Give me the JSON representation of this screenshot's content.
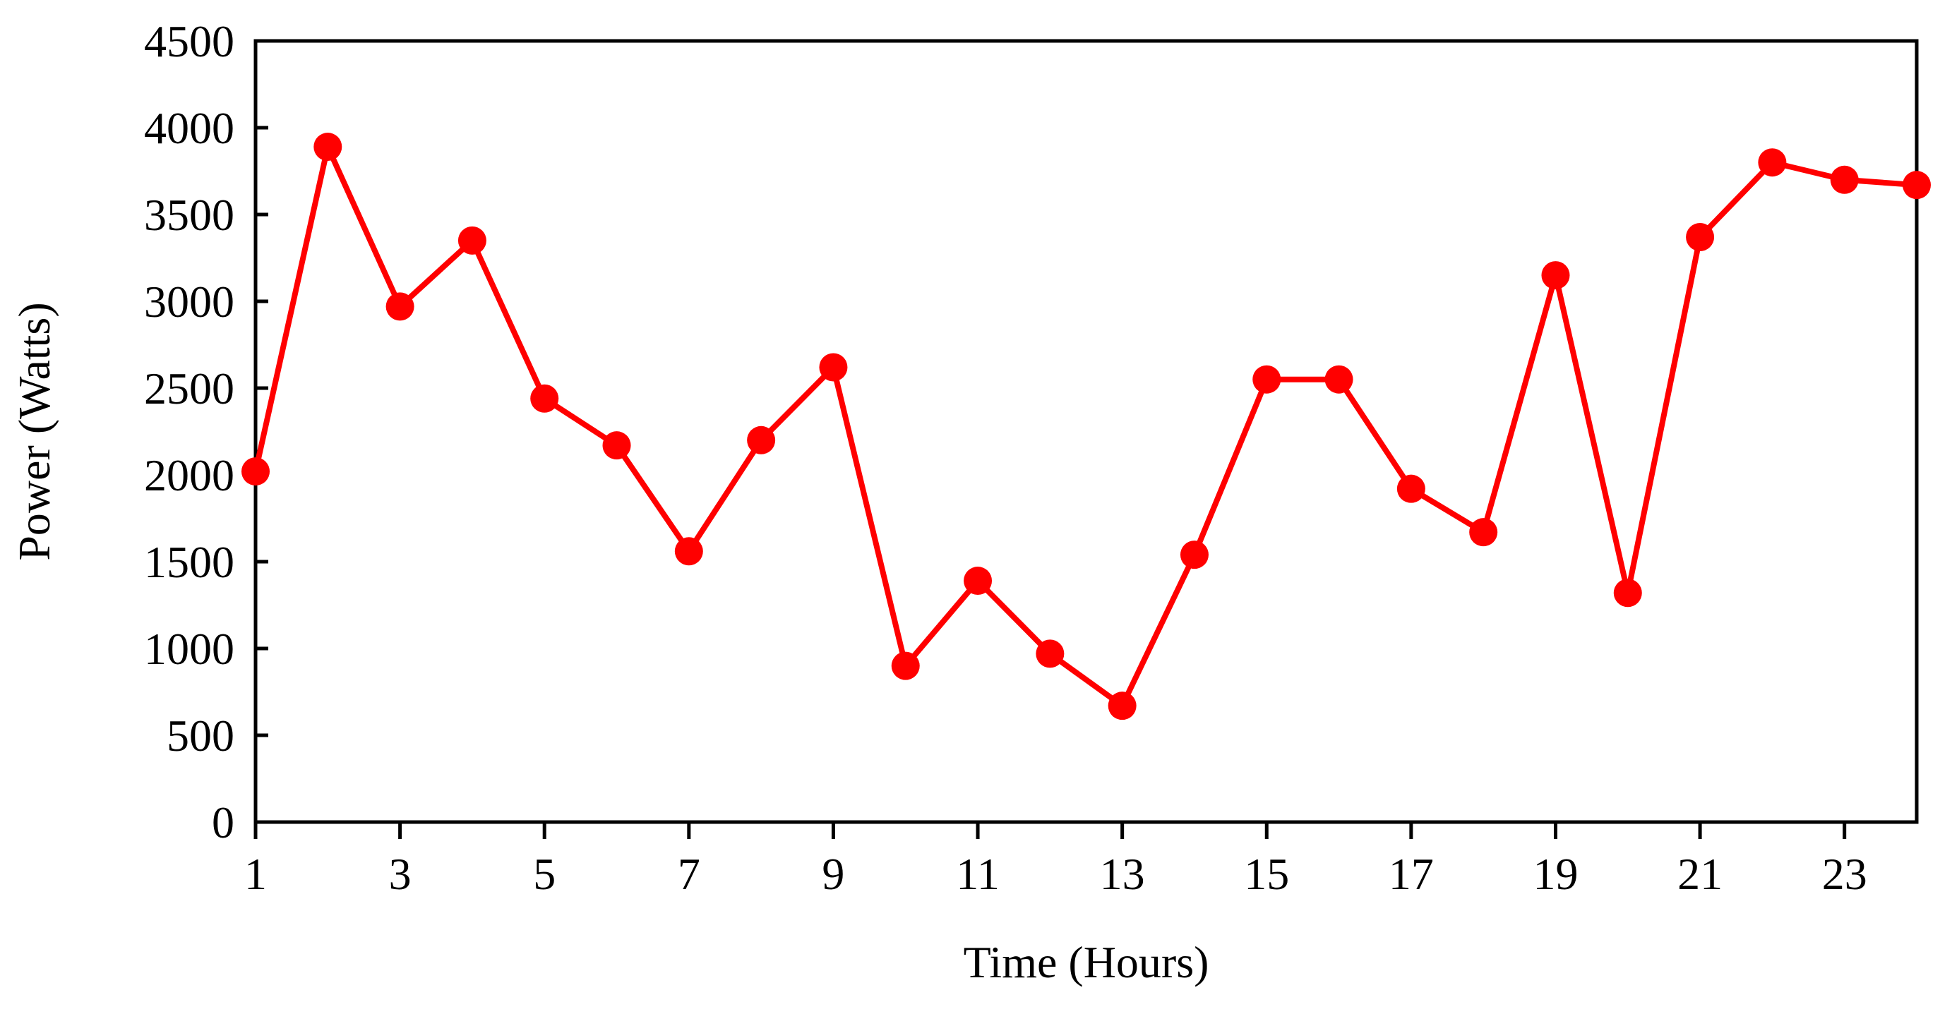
{
  "chart_data": {
    "type": "line",
    "title": "",
    "xlabel": "Time (Hours)",
    "ylabel": "Power (Watts)",
    "xlim": [
      1,
      24
    ],
    "ylim": [
      0,
      4500
    ],
    "x_ticks": [
      "1",
      "3",
      "5",
      "7",
      "9",
      "11",
      "13",
      "15",
      "17",
      "19",
      "21",
      "23"
    ],
    "y_ticks": [
      "0",
      "500",
      "1000",
      "1500",
      "2000",
      "2500",
      "3000",
      "3500",
      "4000",
      "4500"
    ],
    "grid": false,
    "legend": "none",
    "series": [
      {
        "color": "#ff0000",
        "x": [
          1,
          2,
          3,
          4,
          5,
          6,
          7,
          8,
          9,
          10,
          11,
          12,
          13,
          14,
          15,
          16,
          17,
          18,
          19,
          20,
          21,
          22,
          23,
          24
        ],
        "y": [
          2020,
          3890,
          2970,
          3350,
          2440,
          2170,
          1560,
          2200,
          2620,
          900,
          1390,
          970,
          670,
          1540,
          2550,
          2550,
          1920,
          1670,
          3150,
          1320,
          3370,
          3800,
          3700,
          3670
        ]
      }
    ]
  }
}
